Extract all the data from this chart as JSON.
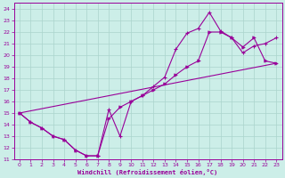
{
  "xlabel": "Windchill (Refroidissement éolien,°C)",
  "xlim": [
    -0.5,
    23.5
  ],
  "ylim": [
    11,
    24.5
  ],
  "xticks": [
    0,
    1,
    2,
    3,
    4,
    5,
    6,
    7,
    8,
    9,
    10,
    11,
    12,
    13,
    14,
    15,
    16,
    17,
    18,
    19,
    20,
    21,
    22,
    23
  ],
  "yticks": [
    11,
    12,
    13,
    14,
    15,
    16,
    17,
    18,
    19,
    20,
    21,
    22,
    23,
    24
  ],
  "bg_color": "#cceee8",
  "line_color": "#990099",
  "grid_color": "#aad4cc",
  "line1_x": [
    0,
    1,
    2,
    3,
    4,
    5,
    6,
    7,
    8,
    9,
    10,
    11,
    12,
    13,
    14,
    15,
    16,
    17,
    18,
    19,
    20,
    21,
    22,
    23
  ],
  "line1_y": [
    15,
    14.2,
    13.7,
    13.0,
    12.7,
    11.8,
    11.3,
    11.3,
    15.3,
    13.0,
    16.0,
    16.5,
    17.3,
    18.1,
    20.5,
    21.9,
    22.3,
    23.7,
    22.1,
    21.5,
    20.2,
    20.8,
    21.0,
    21.5
  ],
  "line2_x": [
    0,
    1,
    2,
    3,
    4,
    5,
    6,
    7,
    8,
    9,
    10,
    11,
    12,
    13,
    14,
    15,
    16,
    17,
    18,
    19,
    20,
    21,
    22,
    23
  ],
  "line2_y": [
    15,
    14.2,
    13.7,
    13.0,
    12.7,
    11.8,
    11.3,
    11.3,
    14.5,
    15.5,
    16.0,
    16.5,
    17.0,
    17.5,
    18.3,
    19.0,
    19.5,
    22.0,
    22.0,
    21.5,
    20.7,
    21.5,
    19.5,
    19.3
  ],
  "line3_x": [
    0,
    23
  ],
  "line3_y": [
    15,
    19.3
  ]
}
